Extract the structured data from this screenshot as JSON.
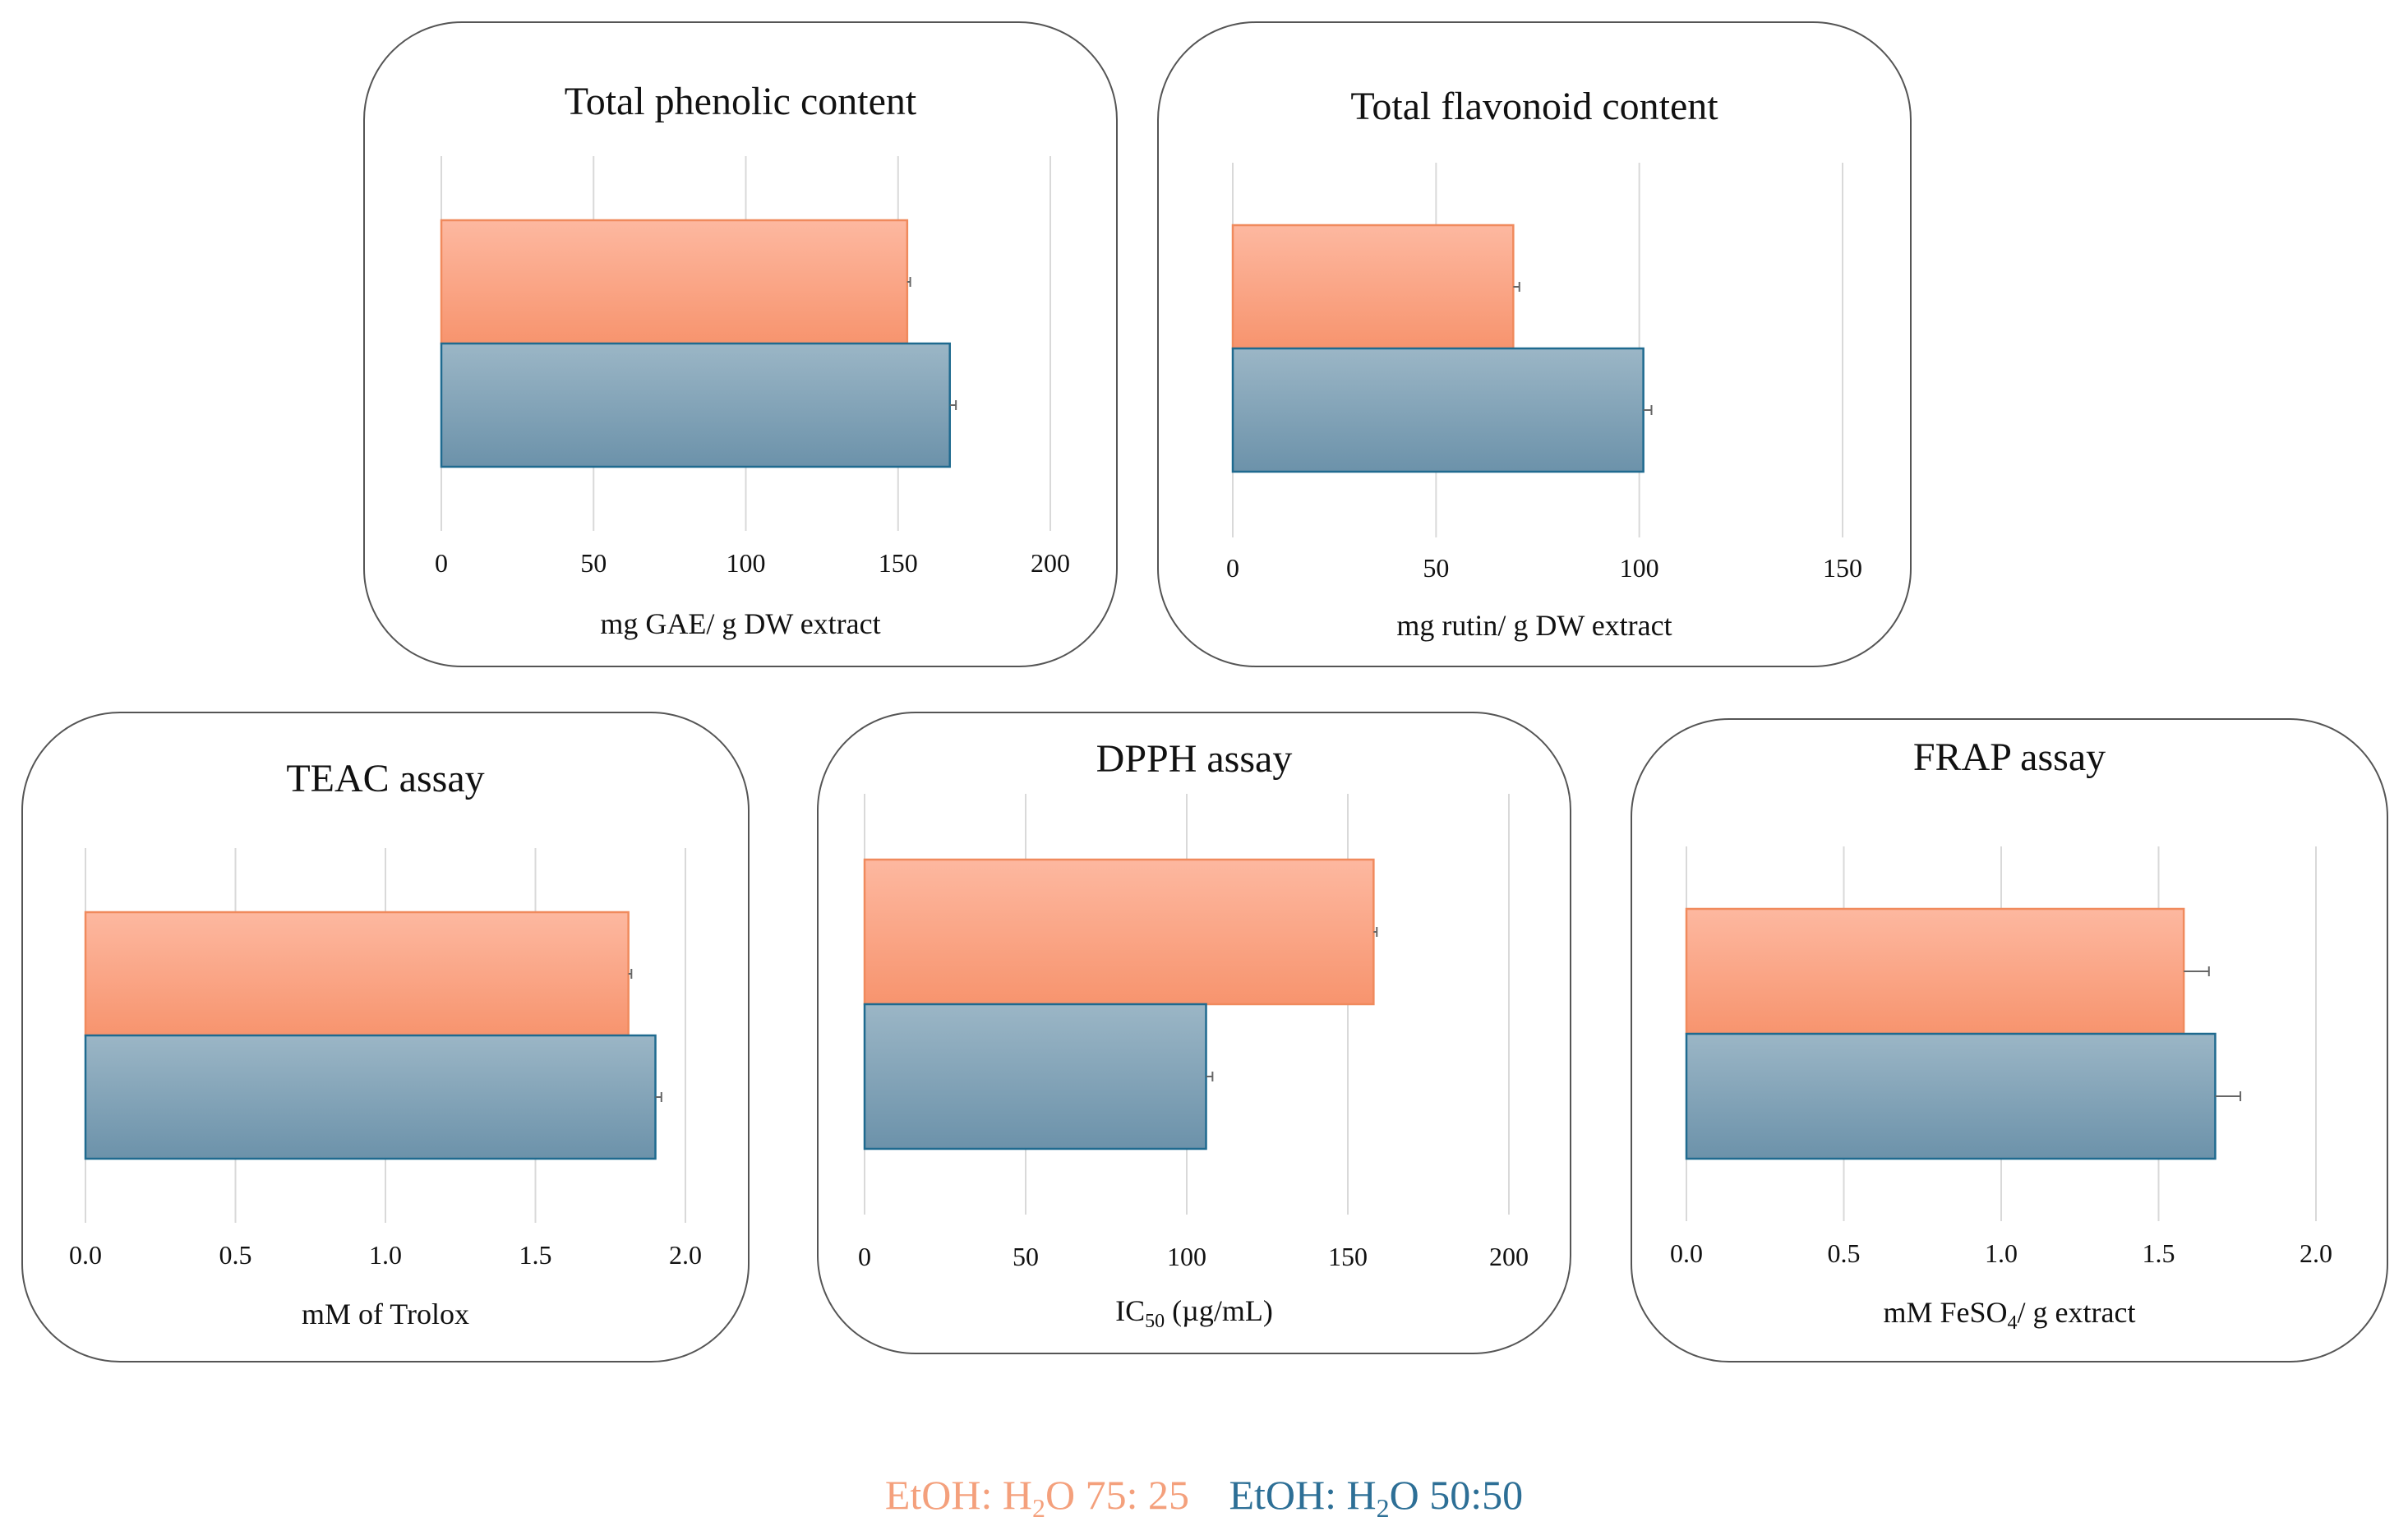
{
  "figure": {
    "legend": [
      {
        "name": "EtOH: H2O 75: 25",
        "label_pre": "EtOH: H",
        "label_sub": "2",
        "label_post": "O 75: 25",
        "color": "#f4a07c"
      },
      {
        "name": "EtOH: H2O 50:50",
        "label_pre": "EtOH: H",
        "label_sub": "2",
        "label_post": "O 50:50",
        "color": "#2d6f96"
      }
    ]
  },
  "chart_data": [
    {
      "type": "bar",
      "orientation": "horizontal",
      "title": "Total phenolic content",
      "xlabel": "mg GAE/ g DW extract",
      "xlim": [
        0,
        200
      ],
      "ticks": [
        "0",
        "50",
        "100",
        "150",
        "200"
      ],
      "tick_values": [
        0,
        50,
        100,
        150,
        200
      ],
      "series": [
        {
          "name": "EtOH: H2O 75: 25",
          "value": 153,
          "error": 1
        },
        {
          "name": "EtOH: H2O 50:50",
          "value": 167,
          "error": 2
        }
      ]
    },
    {
      "type": "bar",
      "orientation": "horizontal",
      "title": "Total flavonoid content",
      "xlabel": "mg rutin/ g DW extract",
      "xlim": [
        0,
        150
      ],
      "ticks": [
        "0",
        "50",
        "100",
        "150"
      ],
      "tick_values": [
        0,
        50,
        100,
        150
      ],
      "series": [
        {
          "name": "EtOH: H2O 75: 25",
          "value": 69,
          "error": 1.5
        },
        {
          "name": "EtOH: H2O 50:50",
          "value": 101,
          "error": 2
        }
      ]
    },
    {
      "type": "bar",
      "orientation": "horizontal",
      "title": "TEAC assay",
      "xlabel": "mM of Trolox",
      "xlim": [
        0,
        2
      ],
      "ticks": [
        "0.0",
        "0.5",
        "1.0",
        "1.5",
        "2.0"
      ],
      "tick_values": [
        0,
        0.5,
        1,
        1.5,
        2
      ],
      "series": [
        {
          "name": "EtOH: H2O 75: 25",
          "value": 1.81,
          "error": 0.01
        },
        {
          "name": "EtOH: H2O 50:50",
          "value": 1.9,
          "error": 0.02
        }
      ]
    },
    {
      "type": "bar",
      "orientation": "horizontal",
      "title": "DPPH assay",
      "xlabel": "IC50 (µg/mL)",
      "xlabel_pre": "IC",
      "xlabel_sub": "50",
      "xlabel_post": " (µg/mL)",
      "xlim": [
        0,
        200
      ],
      "ticks": [
        "0",
        "50",
        "100",
        "150",
        "200"
      ],
      "tick_values": [
        0,
        50,
        100,
        150,
        200
      ],
      "series": [
        {
          "name": "EtOH: H2O 75: 25",
          "value": 158,
          "error": 1
        },
        {
          "name": "EtOH: H2O 50:50",
          "value": 106,
          "error": 2
        }
      ]
    },
    {
      "type": "bar",
      "orientation": "horizontal",
      "title": "FRAP assay",
      "xlabel": "mM FeSO4/ g extract",
      "xlabel_pre": "mM FeSO",
      "xlabel_sub": "4",
      "xlabel_post": "/ g extract",
      "xlim": [
        0,
        2
      ],
      "ticks": [
        "0.0",
        "0.5",
        "1.0",
        "1.5",
        "2.0"
      ],
      "tick_values": [
        0,
        0.5,
        1,
        1.5,
        2
      ],
      "series": [
        {
          "name": "EtOH: H2O 75: 25",
          "value": 1.58,
          "error": 0.08
        },
        {
          "name": "EtOH: H2O 50:50",
          "value": 1.68,
          "error": 0.08
        }
      ]
    }
  ]
}
